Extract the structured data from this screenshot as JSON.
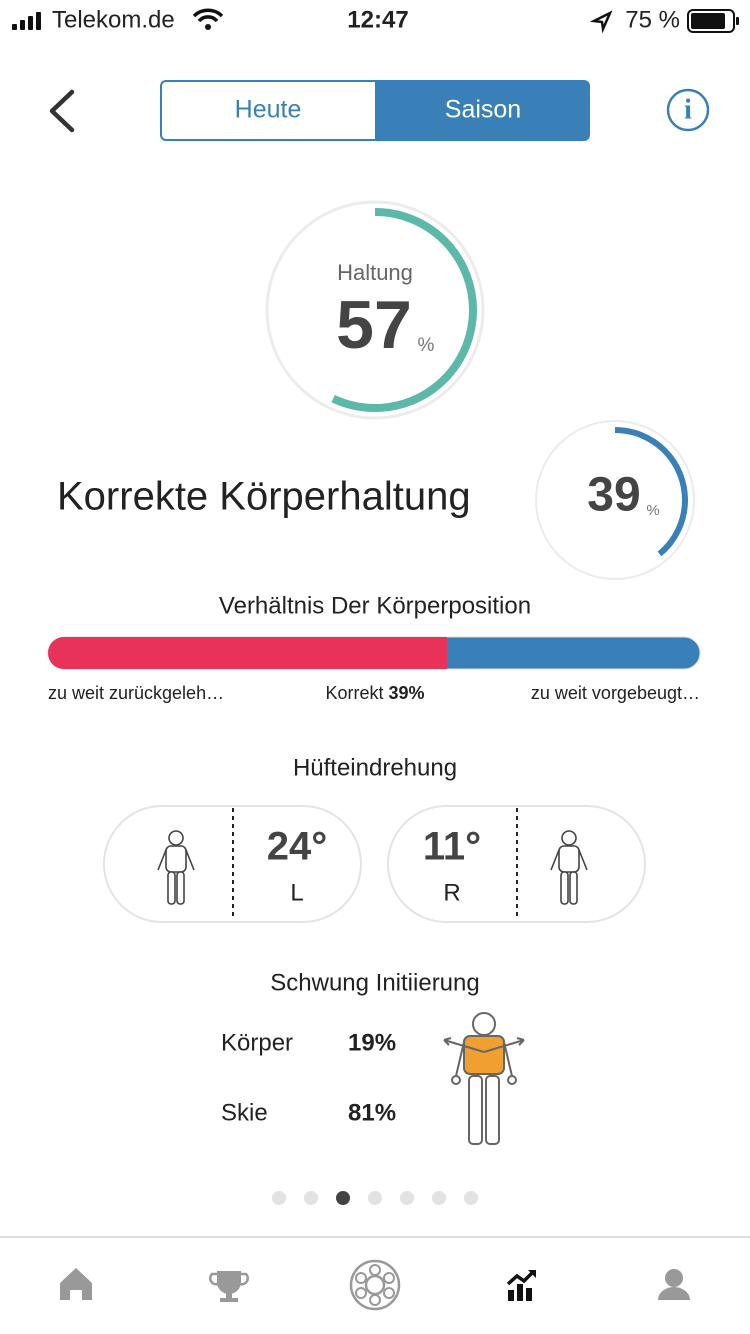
{
  "status_bar": {
    "carrier": "Telekom.de",
    "time": "12:47",
    "battery": "75 %"
  },
  "tabs": [
    "Heute",
    "Saison"
  ],
  "posture": {
    "label": "Haltung",
    "value": 57,
    "unit": "%"
  },
  "correct_posture": {
    "title": "Korrekte Körperhaltung",
    "value": 39,
    "unit": "%"
  },
  "body_position": {
    "title": "Verhältnis Der Körperposition",
    "left_label": "zu weit zurückgeleh…",
    "center_label": "Korrekt",
    "center_value": "39%",
    "right_label": "zu weit vorgebeugt…"
  },
  "hip_rotation": {
    "title": "Hüfteindrehung",
    "left": {
      "value": "24°",
      "side": "L"
    },
    "right": {
      "value": "11°",
      "side": "R"
    }
  },
  "swing_initiation": {
    "title": "Schwung Initiierung",
    "rows": [
      {
        "label": "Körper",
        "value": "19%"
      },
      {
        "label": "Skie",
        "value": "81%"
      }
    ]
  }
}
